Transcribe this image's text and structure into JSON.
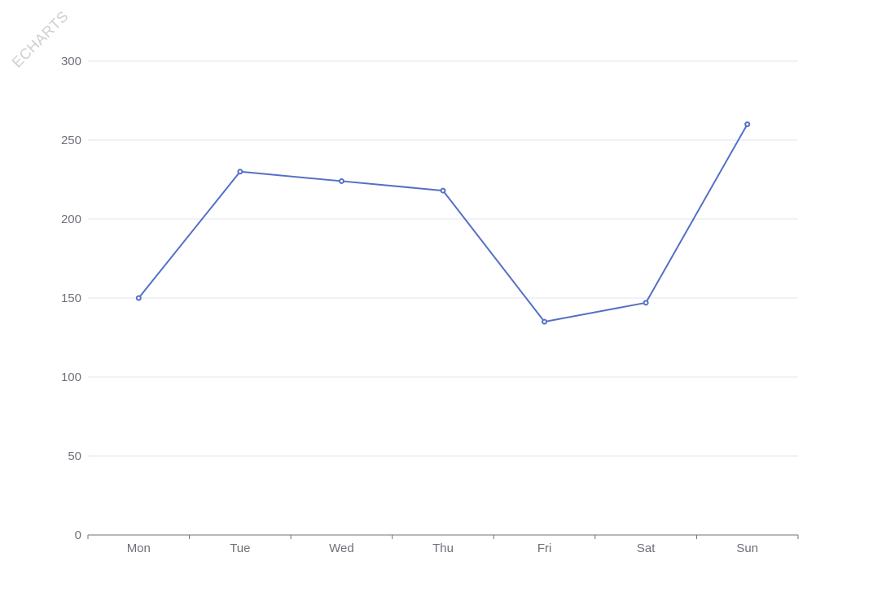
{
  "watermark": "ECHARTS",
  "chart_data": {
    "type": "line",
    "categories": [
      "Mon",
      "Tue",
      "Wed",
      "Thu",
      "Fri",
      "Sat",
      "Sun"
    ],
    "series": [
      {
        "values": [
          150,
          230,
          224,
          218,
          135,
          147,
          260
        ]
      }
    ],
    "yticks": [
      0,
      50,
      100,
      150,
      200,
      250,
      300
    ],
    "ylim": [
      0,
      300
    ],
    "grid": true,
    "line_color": "#5470c6"
  }
}
